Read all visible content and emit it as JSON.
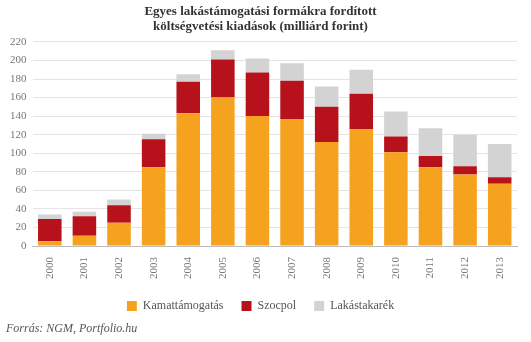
{
  "chart_data": {
    "type": "bar",
    "title": [
      "Egyes lakástámogatási formákra fordított",
      "költségvetési kiadások (milliárd forint)"
    ],
    "source": "Forrás: NGM, Portfolio.hu",
    "categories": [
      "2000",
      "2001",
      "2002",
      "2003",
      "2004",
      "2005",
      "2006",
      "2007",
      "2008",
      "2009",
      "2010",
      "2011",
      "2012",
      "2013"
    ],
    "series": [
      {
        "name": "Kamattámogatás",
        "color": "#f5a31f",
        "values": [
          5,
          11,
          25,
          85,
          143,
          160,
          140,
          137,
          112,
          126,
          101,
          85,
          77,
          67
        ]
      },
      {
        "name": "Szocpol",
        "color": "#b7121c",
        "values": [
          24,
          21,
          19,
          30,
          34,
          41,
          47,
          41,
          38,
          38,
          17,
          12,
          9,
          7
        ]
      },
      {
        "name": "Lakástakarék",
        "color": "#d3d3d3",
        "values": [
          5,
          5,
          6,
          6,
          8,
          10,
          15,
          19,
          22,
          26,
          27,
          30,
          34,
          36
        ]
      }
    ],
    "ylim": [
      0,
      220
    ],
    "yticks": [
      0,
      20,
      40,
      60,
      80,
      100,
      120,
      140,
      160,
      180,
      200,
      220
    ],
    "stacked": true,
    "grid": true,
    "legend": "bottom"
  }
}
